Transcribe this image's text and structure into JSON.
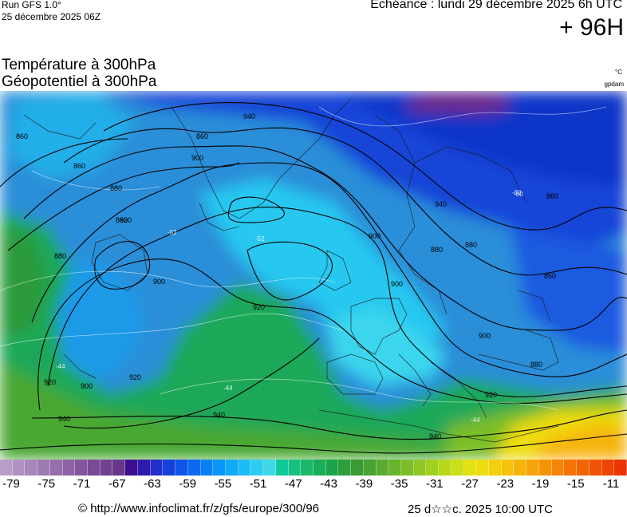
{
  "header": {
    "run_label": "Run GFS 1.0°",
    "run_date": "25 décembre 2025 06Z",
    "valid_time": "Echéance : lundi 29 décembre 2025 6h UTC",
    "lead_time": "+ 96H"
  },
  "titles": {
    "temperature": "Température à 300hPa",
    "geopotential": "Géopotentiel à 300hPa",
    "temp_unit": "°C",
    "geo_unit": "gpdam"
  },
  "map": {
    "contour_labels": [
      "860",
      "880",
      "900",
      "920",
      "940",
      "860",
      "880",
      "900",
      "880",
      "860",
      "900",
      "940",
      "900",
      "880",
      "860",
      "900",
      "920",
      "940",
      "920",
      "900",
      "880",
      "920",
      "940",
      "920",
      "940",
      "880",
      "860"
    ],
    "temp_labels": [
      "-52",
      "-60",
      "-60",
      "-52",
      "-44",
      "-44",
      "-44"
    ]
  },
  "colorbar": {
    "ticks": [
      "-79",
      "-75",
      "-71",
      "-67",
      "-63",
      "-59",
      "-55",
      "-51",
      "-47",
      "-43",
      "-39",
      "-35",
      "-31",
      "-27",
      "-23",
      "-19",
      "-15",
      "-11"
    ],
    "colors": [
      "#b79ec9",
      "#b092c2",
      "#a786ba",
      "#9f7ab3",
      "#966eab",
      "#8c62a4",
      "#83569c",
      "#7a4a95",
      "#71408f",
      "#683688",
      "#3b0f8f",
      "#2d1bb0",
      "#2030c8",
      "#1542dc",
      "#0f55ea",
      "#0a6af2",
      "#0880f6",
      "#0a96f8",
      "#10aaf8",
      "#1cbcf6",
      "#2ccdf0",
      "#3cd8e6",
      "#10c89a",
      "#18c080",
      "#1cb86a",
      "#1aae58",
      "#1ca44a",
      "#2c9e3c",
      "#3a9a34",
      "#4aa232",
      "#5aaa30",
      "#6ab42c",
      "#7cbe28",
      "#8ec824",
      "#a2d01e",
      "#b8d818",
      "#ccde14",
      "#e2e212",
      "#eedb10",
      "#f4cf0e",
      "#f6c20c",
      "#f6b40a",
      "#f6a40a",
      "#f69408",
      "#f68408",
      "#f47406",
      "#f26406",
      "#f05406",
      "#ee4406",
      "#ec3404"
    ]
  },
  "footer": {
    "url": "© http://www.infoclimat.fr/z/gfs/europe/300/96",
    "timestamp": "25 d☆☆c. 2025 10:00 UTC"
  }
}
